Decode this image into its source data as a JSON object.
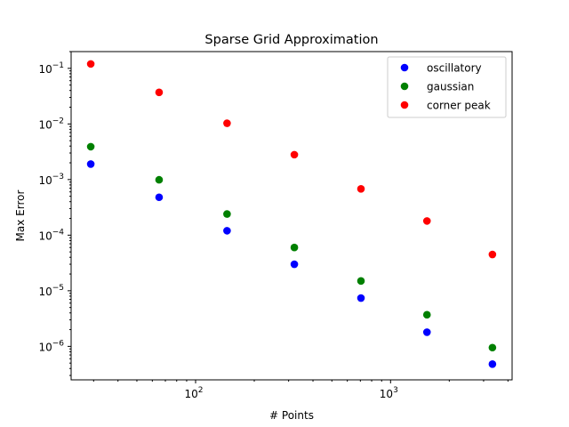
{
  "chart_data": {
    "type": "scatter",
    "title": "Sparse Grid Approximation",
    "xlabel": "# Points",
    "ylabel": "Max Error",
    "xscale": "log",
    "yscale": "log",
    "xlim": [
      23,
      4200
    ],
    "ylim": [
      2.5e-07,
      0.2
    ],
    "grid": false,
    "legend_loc": "upper right",
    "x": [
      29,
      65,
      145,
      321,
      705,
      1537,
      3329
    ],
    "series": [
      {
        "name": "oscillatory",
        "color": "#0000ff",
        "values": [
          0.0019,
          0.00048,
          0.00012,
          3e-05,
          7.4e-06,
          1.8e-06,
          4.8e-07
        ]
      },
      {
        "name": "gaussian",
        "color": "#008000",
        "values": [
          0.0039,
          0.00099,
          0.00024,
          6e-05,
          1.5e-05,
          3.7e-06,
          9.5e-07
        ]
      },
      {
        "name": "corner peak",
        "color": "#ff0000",
        "values": [
          0.12,
          0.037,
          0.0103,
          0.0028,
          0.00068,
          0.00018,
          4.5e-05
        ]
      }
    ],
    "x_tick_labels": [
      {
        "base": "10",
        "exp": "2",
        "value": 100
      },
      {
        "base": "10",
        "exp": "3",
        "value": 1000
      }
    ],
    "y_tick_labels": [
      {
        "base": "10",
        "exp": "−1",
        "value": 0.1
      },
      {
        "base": "10",
        "exp": "−2",
        "value": 0.01
      },
      {
        "base": "10",
        "exp": "−3",
        "value": 0.001
      },
      {
        "base": "10",
        "exp": "−4",
        "value": 0.0001
      },
      {
        "base": "10",
        "exp": "−5",
        "value": 1e-05
      },
      {
        "base": "10",
        "exp": "−6",
        "value": 1e-06
      }
    ]
  }
}
